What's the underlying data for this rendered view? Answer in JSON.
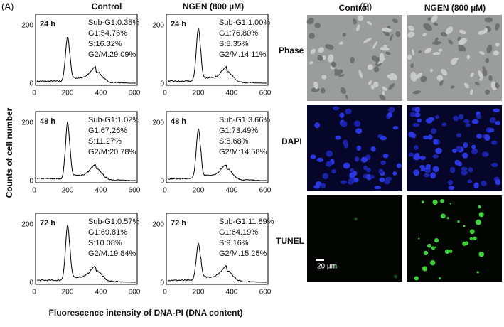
{
  "panel_a": {
    "label": "(A)",
    "columns": [
      "Control",
      "NGEN (800 µM)"
    ],
    "y_axis_label": "Counts of cell number",
    "x_axis_label": "Fluorescence intensity of DNA-PI (DNA content)",
    "x_ticks": [
      "0",
      "200",
      "400",
      "600"
    ],
    "y_ticks": [
      "200",
      "0"
    ],
    "plots": [
      [
        {
          "time": "24 h",
          "stats": [
            "Sub-G1:0.38%",
            "G1:54.76%",
            "S:16.32%",
            "G2/M:29.09%"
          ]
        },
        {
          "time": "24 h",
          "stats": [
            "Sub-G1:1.00%",
            "G1:76.80%",
            "S:8.35%",
            "G2/M:14.11%"
          ]
        }
      ],
      [
        {
          "time": "48 h",
          "stats": [
            "Sub-G1:1.02%",
            "G1:67.26%",
            "S:11.27%",
            "G2/M:20.78%"
          ]
        },
        {
          "time": "48 h",
          "stats": [
            "Sub-G1:3.66%",
            "G1:73.49%",
            "S:8.68%",
            "G2/M:14.58%"
          ]
        }
      ],
      [
        {
          "time": "72 h",
          "stats": [
            "Sub-G1:0.57%",
            "G1:69.81%",
            "S:10.08%",
            "G2/M:19.84%"
          ]
        },
        {
          "time": "72 h",
          "stats": [
            "Sub-G1:11.89%",
            "G1:64.19%",
            "S:9.16%",
            "G2/M:15.25%"
          ]
        }
      ]
    ]
  },
  "panel_b": {
    "label": "(B)",
    "columns": [
      "Control",
      "NGEN (800 µM)"
    ],
    "rows": [
      "Phase",
      "DAPI",
      "TUNEL"
    ],
    "scale_bar": "20 µm"
  }
}
